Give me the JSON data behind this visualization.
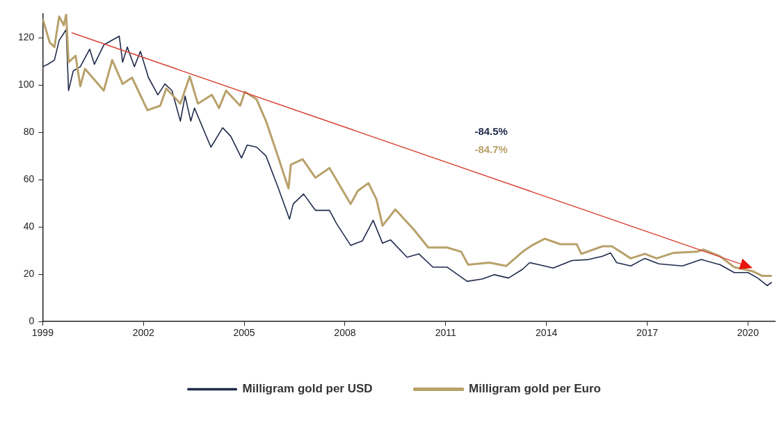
{
  "chart_data": {
    "type": "line",
    "xlim": [
      1999,
      2020.8
    ],
    "xticks": [
      1999,
      2002,
      2005,
      2008,
      2011,
      2014,
      2017,
      2020
    ],
    "ylim": [
      0,
      130
    ],
    "yticks": [
      0,
      20,
      40,
      60,
      80,
      100,
      120
    ],
    "grid": false,
    "legend": "bottom",
    "marker": "none",
    "line_style": "solid",
    "annotations": [
      "-84.5%",
      "-84.7%"
    ],
    "series": [
      {
        "name": "Milligram gold per USD",
        "color": "#1f2a4a",
        "x": [
          1999.0,
          1999.15,
          1999.35,
          1999.49,
          1999.7,
          1999.77,
          1999.91,
          2000.12,
          2000.4,
          2000.54,
          2000.82,
          2001.17,
          2001.28,
          2001.38,
          2001.52,
          2001.73,
          2001.91,
          2002.15,
          2002.43,
          2002.64,
          2002.85,
          2003.1,
          2003.24,
          2003.41,
          2003.52,
          2004.01,
          2004.36,
          2004.6,
          2004.92,
          2005.09,
          2005.37,
          2005.65,
          2006.0,
          2006.35,
          2006.46,
          2006.77,
          2007.12,
          2007.54,
          2007.75,
          2008.17,
          2008.52,
          2008.84,
          2009.12,
          2009.36,
          2009.85,
          2010.2,
          2010.62,
          2011.04,
          2011.64,
          2012.09,
          2012.45,
          2012.87,
          2013.29,
          2013.5,
          2013.78,
          2014.2,
          2014.76,
          2015.25,
          2015.67,
          2015.91,
          2016.09,
          2016.51,
          2016.93,
          2017.35,
          2018.05,
          2018.61,
          2019.17,
          2019.59,
          2020.0,
          2020.29,
          2020.57,
          2020.71
        ],
        "values": [
          107.7,
          108.7,
          110.5,
          118.8,
          123.4,
          97.6,
          105.9,
          107.7,
          115.1,
          108.7,
          116.9,
          119.7,
          120.6,
          109.6,
          116,
          107.7,
          114.2,
          103.1,
          95.8,
          100.4,
          97.6,
          84.7,
          95.3,
          84.7,
          90.2,
          73.7,
          81.9,
          78.3,
          69.1,
          74.6,
          73.7,
          70.0,
          57.0,
          43.3,
          49.7,
          53.9,
          47.0,
          47.0,
          41.4,
          32.2,
          34.1,
          42.8,
          33.1,
          34.5,
          27.2,
          28.6,
          23.0,
          23.0,
          17.0,
          18.0,
          19.8,
          18.4,
          22.1,
          24.9,
          24.0,
          22.6,
          25.8,
          26.2,
          27.6,
          29.0,
          24.9,
          23.5,
          26.7,
          24.4,
          23.5,
          26.2,
          24.0,
          20.7,
          20.7,
          18.4,
          15.2,
          16.6
        ]
      },
      {
        "name": "Milligram gold per Euro",
        "color": "#b8a16a",
        "x": [
          1999.0,
          1999.21,
          1999.35,
          1999.49,
          1999.63,
          1999.7,
          1999.77,
          1999.98,
          2000.12,
          2000.26,
          2000.82,
          2001.07,
          2001.38,
          2001.66,
          2002.12,
          2002.5,
          2002.68,
          2003.1,
          2003.38,
          2003.62,
          2004.04,
          2004.25,
          2004.46,
          2004.88,
          2005.02,
          2005.37,
          2005.65,
          2006.0,
          2006.32,
          2006.39,
          2006.74,
          2007.12,
          2007.54,
          2008.17,
          2008.38,
          2008.7,
          2008.94,
          2009.12,
          2009.5,
          2010.06,
          2010.48,
          2011.04,
          2011.46,
          2011.67,
          2012.3,
          2012.8,
          2013.29,
          2013.57,
          2013.95,
          2014.41,
          2014.9,
          2015.04,
          2015.67,
          2015.95,
          2016.51,
          2016.93,
          2017.28,
          2017.77,
          2018.47,
          2018.68,
          2019.17,
          2019.59,
          2020.15,
          2020.43,
          2020.71
        ],
        "values": [
          128.0,
          117.9,
          116.0,
          128.9,
          125.2,
          129.8,
          109.6,
          112.3,
          99.4,
          106.8,
          97.6,
          110.5,
          100.4,
          103.1,
          89.3,
          91.2,
          98.5,
          92.1,
          103.6,
          92.1,
          95.8,
          90.2,
          97.6,
          91.2,
          97.1,
          93.9,
          84.7,
          70.0,
          56.2,
          66.3,
          68.6,
          60.8,
          64.9,
          49.7,
          55.2,
          58.5,
          51.6,
          40.5,
          47.4,
          38.7,
          31.3,
          31.3,
          29.5,
          24.0,
          24.9,
          23.5,
          29.5,
          32.2,
          35.0,
          32.7,
          32.7,
          28.6,
          31.8,
          31.8,
          26.7,
          28.6,
          26.7,
          29.0,
          29.5,
          30.4,
          27.6,
          23.0,
          21.2,
          19.3,
          19.3
        ]
      }
    ]
  }
}
